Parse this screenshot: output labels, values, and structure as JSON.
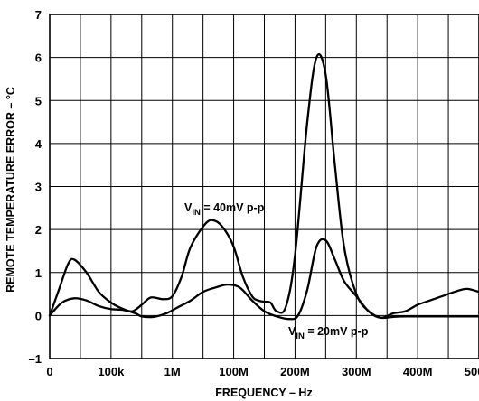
{
  "chart_data": {
    "type": "line",
    "xlabel": "FREQUENCY – Hz",
    "ylabel": "REMOTE TEMPERATURE ERROR – °C",
    "ylim": [
      -1,
      7
    ],
    "y_ticks": [
      "–1",
      "0",
      "1",
      "2",
      "3",
      "4",
      "5",
      "6",
      "7"
    ],
    "x_tick_labels": [
      "0",
      "100k",
      "1M",
      "100M",
      "200M",
      "300M",
      "400M",
      "500M"
    ],
    "grid": true,
    "annotations": [
      {
        "prefix": "V",
        "sub": "IN",
        "suffix": " = 40mV p-p"
      },
      {
        "prefix": "V",
        "sub": "IN",
        "suffix": " = 20mV p-p"
      }
    ],
    "series": [
      {
        "x": [
          0,
          0.3,
          0.6,
          0.8,
          1.2,
          1.6,
          2.0,
          2.4,
          2.7,
          3.0,
          3.3,
          3.7,
          4.0,
          4.3,
          4.6,
          5.1,
          5.4,
          5.7,
          6.0,
          6.3,
          6.6,
          6.8,
          7.0,
          7.2,
          7.4,
          7.7,
          8.0,
          8.4,
          8.7,
          9.0,
          9.3,
          9.6,
          10.0,
          10.4,
          10.8,
          11.2,
          11.6,
          12.0,
          12.4,
          12.8,
          13.2,
          13.6,
          14.0
        ],
        "values": [
          0.0,
          0.6,
          1.2,
          1.3,
          1.0,
          0.55,
          0.3,
          0.15,
          0.1,
          0.25,
          0.42,
          0.38,
          0.45,
          0.9,
          1.6,
          2.15,
          2.2,
          2.0,
          1.6,
          0.9,
          0.45,
          0.35,
          0.32,
          0.3,
          0.1,
          0.2,
          1.4,
          4.5,
          6.0,
          5.6,
          3.5,
          1.6,
          0.5,
          0.1,
          -0.05,
          0.05,
          0.1,
          0.25,
          0.35,
          0.45,
          0.55,
          0.62,
          0.55
        ]
      },
      {
        "x": [
          0,
          0.4,
          0.8,
          1.2,
          1.6,
          2.0,
          2.4,
          2.8,
          3.0,
          3.4,
          3.8,
          4.2,
          4.6,
          5.0,
          5.4,
          5.8,
          6.2,
          6.6,
          7.0,
          7.4,
          7.8,
          8.1,
          8.4,
          8.7,
          9.0,
          9.3,
          9.6,
          10.0,
          10.4,
          10.8,
          11.2,
          11.6,
          12.0,
          12.4,
          12.8,
          13.2,
          13.6,
          14.0
        ],
        "values": [
          0.0,
          0.3,
          0.4,
          0.35,
          0.22,
          0.15,
          0.13,
          0.05,
          -0.02,
          -0.03,
          0.05,
          0.2,
          0.35,
          0.55,
          0.65,
          0.72,
          0.65,
          0.35,
          0.1,
          -0.02,
          -0.08,
          0.0,
          0.6,
          1.6,
          1.75,
          1.3,
          0.8,
          0.45,
          0.1,
          -0.05,
          -0.03,
          -0.02,
          -0.02,
          -0.02,
          -0.02,
          -0.02,
          -0.02,
          -0.02
        ]
      }
    ]
  }
}
